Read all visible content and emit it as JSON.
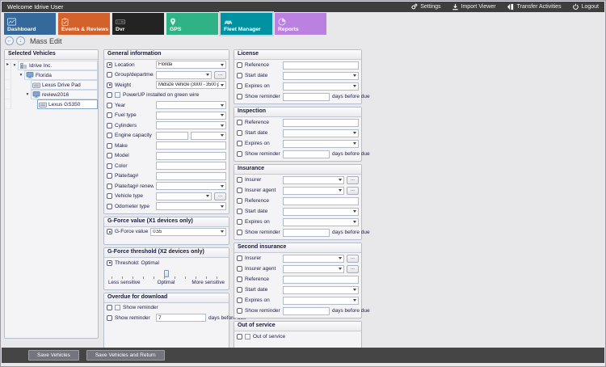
{
  "topbar": {
    "welcome": "Welcome Idrive User",
    "menu": [
      {
        "label": "Settings",
        "icon": "gear-icon"
      },
      {
        "label": "Import Viewer",
        "icon": "import-icon"
      },
      {
        "label": "Transfer Activities",
        "icon": "transfer-icon"
      },
      {
        "label": "Logout",
        "icon": "power-icon"
      }
    ]
  },
  "tabs": [
    {
      "label": "Dashboard",
      "color": "#35699b",
      "selected": false
    },
    {
      "label": "Events & Reviews",
      "color": "#d3612b",
      "selected": false
    },
    {
      "label": "Dvr",
      "color": "#232323",
      "selected": false
    },
    {
      "label": "GPS",
      "color": "#2eb286",
      "selected": false
    },
    {
      "label": "Fleet Manager",
      "color": "#0092a0",
      "selected": true
    },
    {
      "label": "Reports",
      "color": "#bb81e1",
      "selected": false
    }
  ],
  "page": {
    "title": "Mass Edit"
  },
  "sidebar": {
    "title": "Selected Vehicles",
    "tree": [
      {
        "label": "Idrive Inc.",
        "level": 0,
        "icon": "company",
        "expanded": true,
        "pointer": true,
        "selected": false
      },
      {
        "label": "Florida",
        "level": 1,
        "icon": "group",
        "expanded": true,
        "pointer": false,
        "selected": false
      },
      {
        "label": "Lexus Drive Pad",
        "level": 2,
        "icon": "vehicle",
        "expanded": false,
        "pointer": false,
        "selected": false
      },
      {
        "label": "review2016",
        "level": 2,
        "icon": "group",
        "expanded": true,
        "pointer": false,
        "selected": false
      },
      {
        "label": "Lexus GS350",
        "level": 3,
        "icon": "vehicle",
        "expanded": false,
        "pointer": false,
        "selected": true
      }
    ]
  },
  "controls": {
    "ellipsis": "..."
  },
  "sections": {
    "general": {
      "title": "General information",
      "rows": [
        {
          "label": "Location",
          "type": "dropdown",
          "checked": true,
          "value": "Florida"
        },
        {
          "label": "Group/department",
          "type": "dropdown_ellipsis",
          "checked": false,
          "value": ""
        },
        {
          "label": "Weight",
          "type": "dropdown",
          "checked": true,
          "value": "Midsize Vehicle (3000 - 3500 pounds)"
        },
        {
          "label": "PowerUP installed on green wire",
          "type": "checkbox",
          "checked": false
        },
        {
          "label": "Year",
          "type": "dropdown",
          "checked": false,
          "value": ""
        },
        {
          "label": "Fuel type",
          "type": "dropdown",
          "checked": false,
          "value": ""
        },
        {
          "label": "Cylinders",
          "type": "dropdown",
          "checked": false,
          "value": ""
        },
        {
          "label": "Engine capacity",
          "type": "text_dropdown",
          "checked": false,
          "value": ""
        },
        {
          "label": "Make",
          "type": "text",
          "checked": false,
          "value": ""
        },
        {
          "label": "Model",
          "type": "text",
          "checked": false,
          "value": ""
        },
        {
          "label": "Color",
          "type": "text",
          "checked": false,
          "value": ""
        },
        {
          "label": "Plate/tag#",
          "type": "text",
          "checked": false,
          "value": ""
        },
        {
          "label": "Plate/tag# renewal",
          "type": "dropdown",
          "checked": false,
          "value": ""
        },
        {
          "label": "Vehicle type",
          "type": "dropdown_ellipsis",
          "checked": false,
          "value": ""
        },
        {
          "label": "Odometer type",
          "type": "dropdown",
          "checked": false,
          "value": ""
        }
      ]
    },
    "gforce_value": {
      "title": "G-Force value (X1 devices only)",
      "rows": [
        {
          "label": "G-Force value",
          "type": "dropdown",
          "checked": true,
          "value": "0.55"
        }
      ]
    },
    "gforce_threshold": {
      "title": "G-Force threshold (X2 devices only)",
      "row_label": "Threshold: Optimal",
      "checked": true,
      "slider_labels": [
        "Less sensitive",
        "Optimal",
        "More sensitive"
      ],
      "slider_position": "50%"
    },
    "overdue": {
      "title": "Overdue for download",
      "rows": [
        {
          "label": "Show reminder",
          "type": "checkbox",
          "checked": false
        },
        {
          "label": "Show reminder",
          "type": "reminder",
          "checked": false,
          "value": "7",
          "suffix": "days before due"
        }
      ]
    },
    "license": {
      "title": "License",
      "rows": [
        {
          "label": "Reference",
          "type": "text",
          "checked": false,
          "value": ""
        },
        {
          "label": "Start date",
          "type": "dropdown",
          "checked": false,
          "value": ""
        },
        {
          "label": "Expires on",
          "type": "dropdown",
          "checked": false,
          "value": ""
        },
        {
          "label": "Show reminder",
          "type": "reminder",
          "checked": false,
          "value": "",
          "suffix": "days before due"
        }
      ]
    },
    "inspection": {
      "title": "Inspection",
      "rows": [
        {
          "label": "Reference",
          "type": "text",
          "checked": false,
          "value": ""
        },
        {
          "label": "Start date",
          "type": "dropdown",
          "checked": false,
          "value": ""
        },
        {
          "label": "Expires on",
          "type": "dropdown",
          "checked": false,
          "value": ""
        },
        {
          "label": "Show reminder",
          "type": "reminder",
          "checked": false,
          "value": "",
          "suffix": "days before due"
        }
      ]
    },
    "insurance": {
      "title": "Insurance",
      "rows": [
        {
          "label": "Insurer",
          "type": "dropdown_ellipsis",
          "checked": false,
          "value": ""
        },
        {
          "label": "Insurer agent",
          "type": "dropdown_ellipsis",
          "checked": false,
          "value": ""
        },
        {
          "label": "Reference",
          "type": "text",
          "checked": false,
          "value": ""
        },
        {
          "label": "Start date",
          "type": "dropdown",
          "checked": false,
          "value": ""
        },
        {
          "label": "Expires on",
          "type": "dropdown",
          "checked": false,
          "value": ""
        },
        {
          "label": "Show reminder",
          "type": "reminder",
          "checked": false,
          "value": "",
          "suffix": "days before due"
        }
      ]
    },
    "second_insurance": {
      "title": "Second insurance",
      "rows": [
        {
          "label": "Insurer",
          "type": "dropdown_ellipsis",
          "checked": false,
          "value": ""
        },
        {
          "label": "Insurer agent",
          "type": "dropdown_ellipsis",
          "checked": false,
          "value": ""
        },
        {
          "label": "Reference",
          "type": "text",
          "checked": false,
          "value": ""
        },
        {
          "label": "Start date",
          "type": "dropdown",
          "checked": false,
          "value": ""
        },
        {
          "label": "Expires on",
          "type": "dropdown",
          "checked": false,
          "value": ""
        },
        {
          "label": "Show reminder",
          "type": "reminder",
          "checked": false,
          "value": "",
          "suffix": "days before due"
        }
      ]
    },
    "out_of_service": {
      "title": "Out of service",
      "rows": [
        {
          "label": "Out of service",
          "type": "checkbox",
          "checked": false
        }
      ]
    }
  },
  "footer": {
    "save": "Save Vehicles",
    "save_return": "Save Vehicles and Return"
  }
}
